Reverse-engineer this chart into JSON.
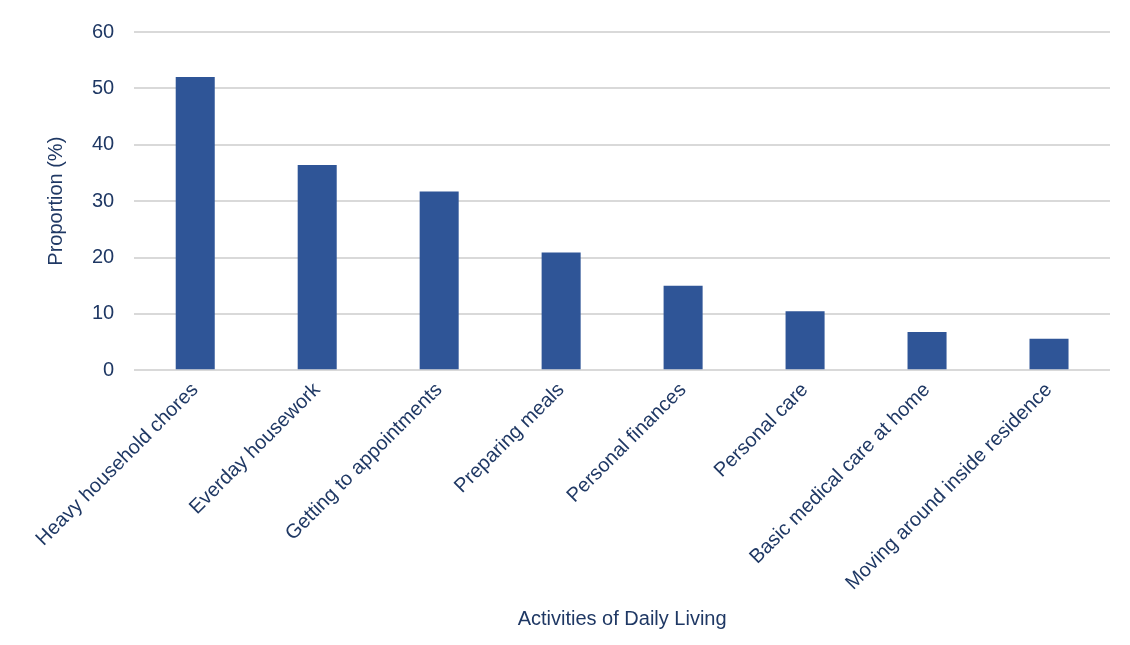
{
  "chart_data": {
    "type": "bar",
    "xlabel": "Activities of Daily Living",
    "ylabel": "Proportion (%)",
    "categories": [
      "Heavy household chores",
      "Everday housework",
      "Getting to appointments",
      "Preparing meals",
      "Personal finances",
      "Personal care",
      "Basic medical care at home",
      "Moving around inside residence"
    ],
    "values": [
      52,
      36.4,
      31.7,
      20.9,
      15,
      10.5,
      6.8,
      5.6
    ],
    "color": "#2f5597",
    "ylim": [
      0,
      60
    ],
    "yticks": [
      0,
      10,
      20,
      30,
      40,
      50,
      60
    ],
    "grid": "y"
  }
}
